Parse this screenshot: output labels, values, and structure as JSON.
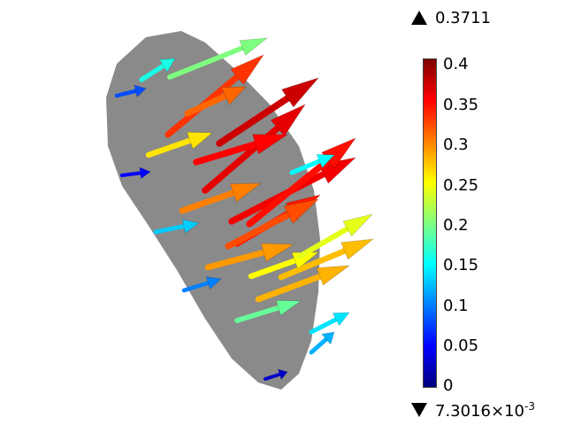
{
  "legend": {
    "max_value": "0.3711",
    "min_value_mantissa": "7.3016",
    "min_value_times": "×10",
    "min_value_exponent": "-3",
    "ticks": [
      "0.4",
      "0.35",
      "0.3",
      "0.25",
      "0.2",
      "0.15",
      "0.1",
      "0.05",
      "0"
    ],
    "colormap": [
      "#00007f",
      "#0000ff",
      "#007fff",
      "#00ffff",
      "#7fff7f",
      "#ffff00",
      "#ff7f00",
      "#ff0000",
      "#7f0000"
    ]
  },
  "surface_color": "#8a8a8a",
  "arrows": [
    {
      "v": 0.37
    },
    {
      "v": 0.36
    },
    {
      "v": 0.355
    },
    {
      "v": 0.35
    },
    {
      "v": 0.345
    },
    {
      "v": 0.34
    },
    {
      "v": 0.33
    },
    {
      "v": 0.32
    },
    {
      "v": 0.31
    },
    {
      "v": 0.3
    },
    {
      "v": 0.29
    },
    {
      "v": 0.28
    },
    {
      "v": 0.275
    },
    {
      "v": 0.26
    },
    {
      "v": 0.25
    },
    {
      "v": 0.24
    },
    {
      "v": 0.2
    },
    {
      "v": 0.19
    },
    {
      "v": 0.16
    },
    {
      "v": 0.15
    },
    {
      "v": 0.14
    },
    {
      "v": 0.13
    },
    {
      "v": 0.12
    },
    {
      "v": 0.1
    },
    {
      "v": 0.08
    },
    {
      "v": 0.05
    },
    {
      "v": 0.03
    }
  ]
}
